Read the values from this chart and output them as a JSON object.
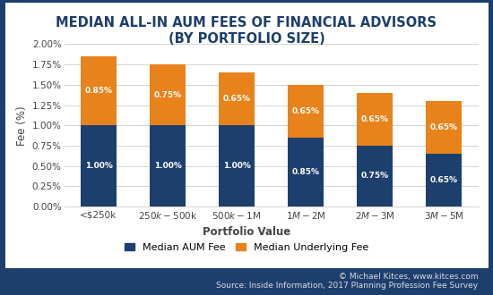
{
  "title": "MEDIAN ALL-IN AUM FEES OF FINANCIAL ADVISORS\n(BY PORTFOLIO SIZE)",
  "categories": [
    "<$250k",
    "$250k - $500k",
    "$500k - $1M",
    "$1M - $2M",
    "$2M - $3M",
    "$3M - $5M"
  ],
  "aum_fees": [
    1.0,
    1.0,
    1.0,
    0.85,
    0.75,
    0.65
  ],
  "underlying_fees": [
    0.85,
    0.75,
    0.65,
    0.65,
    0.65,
    0.65
  ],
  "aum_color": "#1d3f6e",
  "underlying_color": "#e8821a",
  "xlabel": "Portfolio Value",
  "ylabel": "Fee (%)",
  "ylim": [
    0,
    2.0
  ],
  "yticks": [
    0.0,
    0.25,
    0.5,
    0.75,
    1.0,
    1.25,
    1.5,
    1.75,
    2.0
  ],
  "ytick_labels": [
    "0.00%",
    "0.25%",
    "0.50%",
    "0.75%",
    "1.00%",
    "1.25%",
    "1.50%",
    "1.75%",
    "2.00%"
  ],
  "legend_labels": [
    "Median AUM Fee",
    "Median Underlying Fee"
  ],
  "footnote1_plain": "© Michael Kitces, ",
  "footnote1_link": "www.kitces.com",
  "footnote2": "Source: Inside Information, 2017 Planning Profession Fee Survey",
  "outer_bg_color": "#1d3f6e",
  "inner_bg_color": "#ffffff",
  "title_color": "#1d3f6e",
  "axis_label_color": "#444444",
  "tick_color": "#444444",
  "bar_label_color": "#ffffff",
  "grid_color": "#cccccc",
  "title_fontsize": 10.5,
  "axis_label_fontsize": 8.5,
  "tick_fontsize": 7.5,
  "legend_fontsize": 8,
  "footnote_fontsize": 6.5,
  "bar_width": 0.52
}
